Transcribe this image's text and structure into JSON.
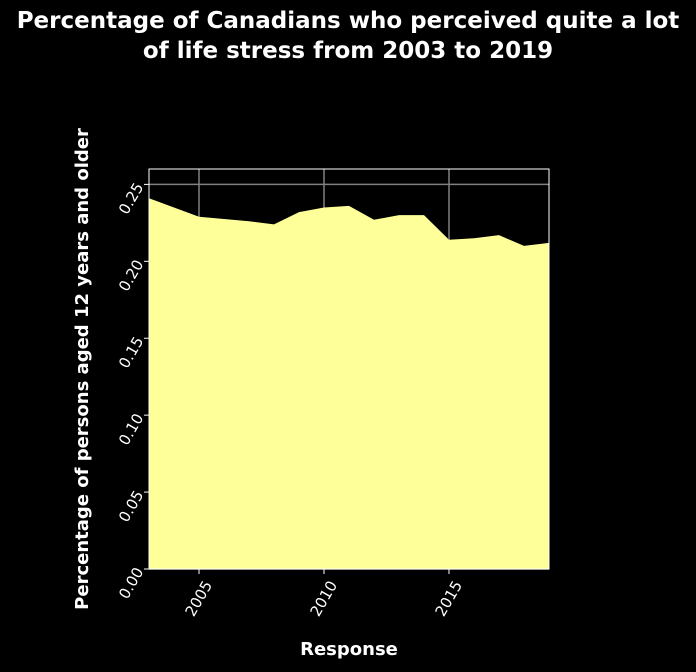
{
  "chart_data": {
    "type": "area",
    "title": "Percentage of Canadians who perceived quite a lot of life stress from 2003 to 2019",
    "xlabel": "Response",
    "ylabel": "Percentage of persons aged 12 years and older",
    "x": [
      2003,
      2005,
      2007,
      2008,
      2009,
      2010,
      2011,
      2012,
      2013,
      2014,
      2015,
      2016,
      2017,
      2018,
      2019
    ],
    "values": [
      0.241,
      0.229,
      0.226,
      0.224,
      0.232,
      0.235,
      0.236,
      0.227,
      0.23,
      0.23,
      0.214,
      0.215,
      0.217,
      0.21,
      0.212
    ],
    "xlim": [
      2003,
      2019
    ],
    "ylim": [
      0,
      0.26
    ],
    "x_ticks": [
      "2005",
      "2010",
      "2015"
    ],
    "y_ticks": [
      "0.00",
      "0.05",
      "0.10",
      "0.15",
      "0.20",
      "0.25"
    ],
    "grid": true,
    "colors": {
      "background": "#000000",
      "fill": "#ffff99",
      "grid": "#808080",
      "text": "#ffffff"
    }
  }
}
